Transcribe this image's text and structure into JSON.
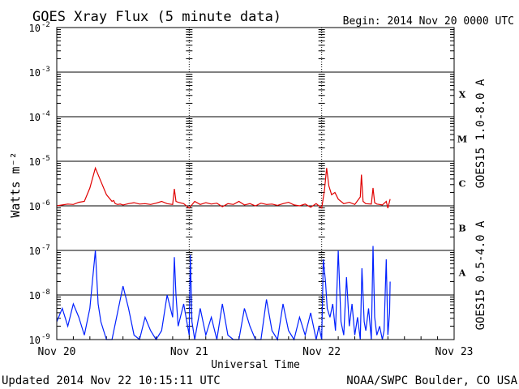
{
  "title": "GOES Xray Flux (5 minute data)",
  "begin_label": "Begin:  2014 Nov 20 0000 UTC",
  "updated_label": "Updated 2014 Nov 22 10:15:11 UTC",
  "credit_label": "NOAA/SWPC Boulder, CO USA",
  "colors": {
    "long": "#e00000",
    "short": "#0020ff",
    "axis": "#000000",
    "background": "#ffffff"
  },
  "chart_data": {
    "type": "line",
    "xlabel": "Universal Time",
    "ylabel": "Watts m⁻²",
    "log_y": true,
    "ylim_exp": [
      -9,
      -2
    ],
    "xlim_hours": [
      0,
      72
    ],
    "x_ticks": [
      {
        "label": "Nov 20",
        "hour": 0
      },
      {
        "label": "Nov 21",
        "hour": 24
      },
      {
        "label": "Nov 22",
        "hour": 48
      },
      {
        "label": "Nov 23",
        "hour": 72
      }
    ],
    "y_ticks": [
      {
        "base": "10",
        "exp": "-9",
        "value": -9
      },
      {
        "base": "10",
        "exp": "-8",
        "value": -8
      },
      {
        "base": "10",
        "exp": "-7",
        "value": -7
      },
      {
        "base": "10",
        "exp": "-6",
        "value": -6
      },
      {
        "base": "10",
        "exp": "-5",
        "value": -5
      },
      {
        "base": "10",
        "exp": "-4",
        "value": -4
      },
      {
        "base": "10",
        "exp": "-3",
        "value": -3
      },
      {
        "base": "10",
        "exp": "-2",
        "value": -2
      }
    ],
    "flare_classes": [
      {
        "label": "A",
        "exp": -8
      },
      {
        "label": "B",
        "exp": -7
      },
      {
        "label": "C",
        "exp": -6
      },
      {
        "label": "M",
        "exp": -5
      },
      {
        "label": "X",
        "exp": -4
      }
    ],
    "grid": true,
    "series": [
      {
        "name": "GOES15 1.0-8.0 A",
        "color": "#e00000",
        "x": [
          0,
          1,
          2,
          3,
          4,
          5,
          6,
          7,
          8,
          9,
          10,
          10.3,
          10.6,
          11,
          11.5,
          12,
          13,
          14,
          15,
          16,
          17,
          18,
          19,
          20,
          21,
          21.3,
          21.6,
          22,
          23,
          24,
          25,
          26,
          27,
          28,
          29,
          30,
          31,
          32,
          33,
          34,
          35,
          36,
          37,
          38,
          39,
          40,
          41,
          42,
          43,
          44,
          45,
          46,
          47,
          48,
          48.5,
          48.9,
          49.3,
          49.8,
          50.4,
          51,
          52,
          53,
          54,
          55,
          55.2,
          55.5,
          56,
          57,
          57.3,
          57.6,
          58,
          59,
          59.7,
          60,
          60.4
        ],
        "y": [
          -6.0,
          -5.98,
          -5.96,
          -5.97,
          -5.92,
          -5.9,
          -5.6,
          -5.15,
          -5.45,
          -5.75,
          -5.9,
          -5.88,
          -5.95,
          -5.97,
          -5.96,
          -5.98,
          -5.95,
          -5.93,
          -5.96,
          -5.95,
          -5.97,
          -5.94,
          -5.9,
          -5.95,
          -5.97,
          -5.62,
          -5.9,
          -5.92,
          -5.95,
          -6.05,
          -5.9,
          -5.97,
          -5.93,
          -5.96,
          -5.94,
          -6.02,
          -5.95,
          -5.97,
          -5.9,
          -5.98,
          -5.95,
          -6.0,
          -5.94,
          -5.97,
          -5.96,
          -5.99,
          -5.95,
          -5.92,
          -5.98,
          -6.0,
          -5.96,
          -6.03,
          -5.95,
          -6.05,
          -5.65,
          -5.15,
          -5.55,
          -5.75,
          -5.7,
          -5.85,
          -5.95,
          -5.92,
          -5.97,
          -5.8,
          -5.3,
          -5.9,
          -5.95,
          -5.96,
          -5.6,
          -5.93,
          -5.96,
          -5.98,
          -5.9,
          -6.05,
          -5.85
        ]
      },
      {
        "name": "GOES15 0.5-4.0 A",
        "color": "#0020ff",
        "x": [
          0,
          1,
          2,
          3,
          4,
          5,
          6,
          7,
          7.5,
          8,
          8.5,
          9,
          10,
          11,
          12,
          13,
          14,
          15,
          16,
          17,
          18,
          19,
          20,
          21,
          21.3,
          21.6,
          22,
          23,
          24,
          24.2,
          24.5,
          25,
          26,
          27,
          28,
          29,
          30,
          31,
          32,
          33,
          34,
          35,
          36,
          37,
          38,
          39,
          40,
          41,
          42,
          43,
          44,
          45,
          46,
          47,
          47.5,
          48,
          48.3,
          48.7,
          49,
          49.5,
          50,
          50.5,
          51,
          51.5,
          52,
          52.5,
          53,
          53.5,
          54,
          54.5,
          55,
          55.3,
          55.7,
          56,
          56.5,
          57,
          57.3,
          57.6,
          58,
          58.5,
          59,
          59.3,
          59.7,
          60,
          60.3,
          60.4
        ],
        "y": [
          -8.6,
          -8.3,
          -8.7,
          -8.2,
          -8.5,
          -8.9,
          -8.3,
          -7.0,
          -8.2,
          -8.6,
          -8.8,
          -9.0,
          -9.0,
          -8.4,
          -7.8,
          -8.3,
          -8.9,
          -9.0,
          -8.5,
          -8.8,
          -9.0,
          -8.8,
          -8.0,
          -8.5,
          -7.15,
          -8.0,
          -8.7,
          -8.2,
          -8.9,
          -7.1,
          -8.6,
          -9.0,
          -8.3,
          -8.9,
          -8.5,
          -9.0,
          -8.2,
          -8.9,
          -9.0,
          -9.0,
          -8.3,
          -8.7,
          -9.0,
          -9.0,
          -8.1,
          -8.8,
          -9.0,
          -8.2,
          -8.8,
          -9.0,
          -8.5,
          -8.9,
          -8.4,
          -9.0,
          -8.7,
          -9.0,
          -7.2,
          -7.7,
          -8.3,
          -8.5,
          -8.2,
          -8.8,
          -7.0,
          -8.6,
          -8.9,
          -7.6,
          -8.7,
          -8.2,
          -8.9,
          -8.5,
          -9.0,
          -7.4,
          -8.6,
          -8.8,
          -8.3,
          -9.0,
          -6.9,
          -8.5,
          -8.9,
          -8.7,
          -9.0,
          -8.8,
          -7.2,
          -8.9,
          -8.4,
          -7.7
        ]
      }
    ]
  }
}
